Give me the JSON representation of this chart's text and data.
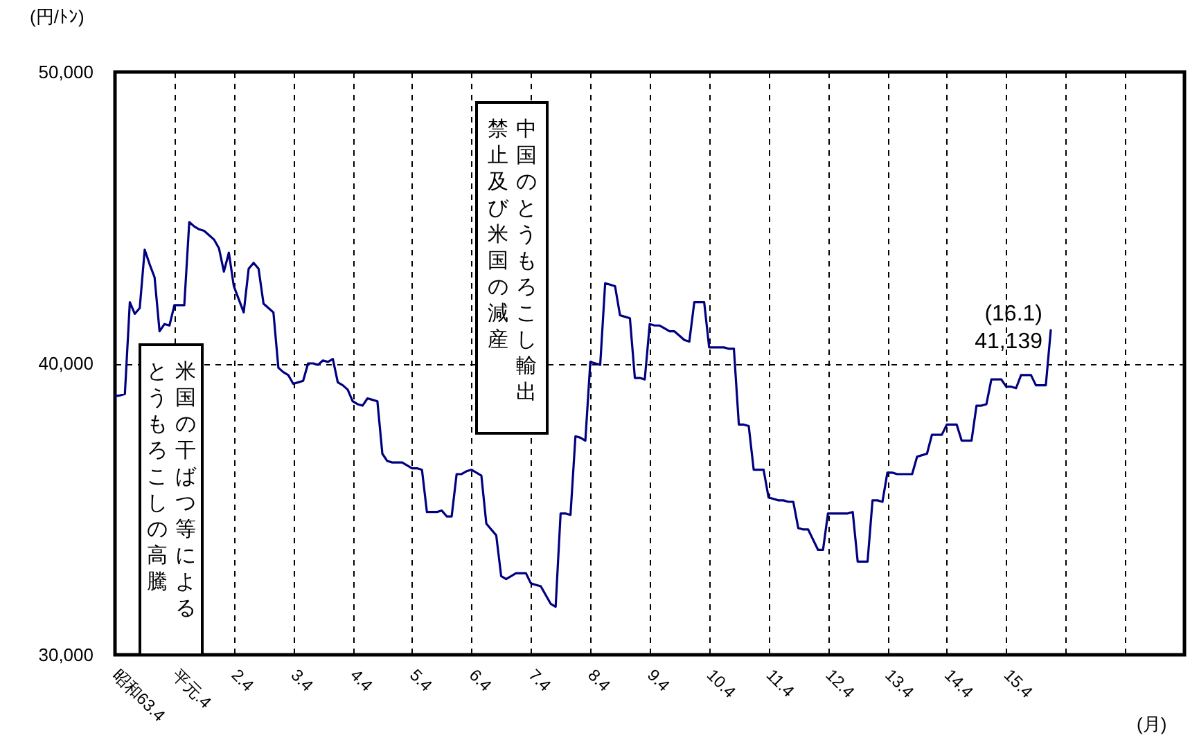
{
  "chart_data": {
    "type": "line",
    "xlabel": "(月)",
    "ylabel": "(円/ﾄﾝ)",
    "categories": [
      "昭和63.4",
      null,
      null,
      null,
      null,
      null,
      null,
      null,
      null,
      null,
      null,
      null,
      "平元.4",
      null,
      null,
      null,
      null,
      null,
      null,
      null,
      null,
      null,
      null,
      null,
      "2.4",
      null,
      null,
      null,
      null,
      null,
      null,
      null,
      null,
      null,
      null,
      null,
      "3.4",
      null,
      null,
      null,
      null,
      null,
      null,
      null,
      null,
      null,
      null,
      null,
      "4.4",
      null,
      null,
      null,
      null,
      null,
      null,
      null,
      null,
      null,
      null,
      null,
      "5.4",
      null,
      null,
      null,
      null,
      null,
      null,
      null,
      null,
      null,
      null,
      null,
      "6.4",
      null,
      null,
      null,
      null,
      null,
      null,
      null,
      null,
      null,
      null,
      null,
      "7.4",
      null,
      null,
      null,
      null,
      null,
      null,
      null,
      null,
      null,
      null,
      null,
      "8.4",
      null,
      null,
      null,
      null,
      null,
      null,
      null,
      null,
      null,
      null,
      null,
      "9.4",
      null,
      null,
      null,
      null,
      null,
      null,
      null,
      null,
      null,
      null,
      null,
      "10.4",
      null,
      null,
      null,
      null,
      null,
      null,
      null,
      null,
      null,
      null,
      null,
      "11.4",
      null,
      null,
      null,
      null,
      null,
      null,
      null,
      null,
      null,
      null,
      null,
      "12.4",
      null,
      null,
      null,
      null,
      null,
      null,
      null,
      null,
      null,
      null,
      null,
      "13.4",
      null,
      null,
      null,
      null,
      null,
      null,
      null,
      null,
      null,
      null,
      null,
      "14.4",
      null,
      null,
      null,
      null,
      null,
      null,
      null,
      null,
      null,
      null,
      null,
      "15.4",
      null,
      null,
      null,
      null,
      null,
      null,
      null,
      null,
      null,
      null,
      null,
      null,
      null,
      null,
      null,
      null,
      null,
      null,
      null,
      null,
      null,
      null,
      null,
      null,
      null,
      null,
      null,
      null,
      null,
      null,
      null,
      null,
      null,
      null,
      null,
      null
    ],
    "ylim": [
      30000,
      50000
    ],
    "yticks": [
      {
        "value": 30000,
        "label": "30,000"
      },
      {
        "value": 40000,
        "label": "40,000"
      },
      {
        "value": 50000,
        "label": "50,000"
      }
    ],
    "grid": true,
    "series": [
      {
        "color": "#000080",
        "values": [
          38880,
          38900,
          38950,
          42100,
          41700,
          41900,
          43900,
          43400,
          42950,
          41100,
          41350,
          41300,
          42000,
          42000,
          42000,
          44850,
          44700,
          44600,
          44550,
          44400,
          44250,
          43950,
          43150,
          43800,
          42650,
          42200,
          41750,
          43250,
          43450,
          43250,
          42050,
          41900,
          41750,
          39850,
          39700,
          39600,
          39300,
          39350,
          39400,
          40000,
          40000,
          39950,
          40100,
          40050,
          40150,
          39350,
          39250,
          39100,
          38700,
          38600,
          38550,
          38800,
          38750,
          38700,
          36900,
          36650,
          36600,
          36600,
          36600,
          36500,
          36400,
          36400,
          36350,
          34900,
          34900,
          34900,
          34950,
          34750,
          34750,
          36200,
          36200,
          36300,
          36350,
          36250,
          36150,
          34500,
          34300,
          34100,
          32700,
          32600,
          32700,
          32800,
          32800,
          32800,
          32450,
          32400,
          32350,
          32050,
          31750,
          31650,
          34850,
          34850,
          34800,
          37500,
          37450,
          37350,
          40050,
          40000,
          39950,
          42750,
          42700,
          42650,
          41650,
          41600,
          41550,
          39500,
          39500,
          39450,
          41350,
          41300,
          41300,
          41200,
          41100,
          41100,
          40950,
          40800,
          40750,
          42100,
          42100,
          42100,
          40550,
          40550,
          40550,
          40550,
          40500,
          40500,
          37900,
          37900,
          37850,
          36350,
          36350,
          36350,
          35400,
          35350,
          35300,
          35300,
          35250,
          35250,
          34350,
          34300,
          34300,
          33950,
          33600,
          33600,
          34850,
          34850,
          34850,
          34850,
          34850,
          34900,
          33200,
          33200,
          33200,
          35300,
          35300,
          35250,
          36250,
          36250,
          36200,
          36200,
          36200,
          36200,
          36800,
          36850,
          36900,
          37550,
          37550,
          37550,
          37900,
          37900,
          37900,
          37350,
          37350,
          37350,
          38550,
          38550,
          38600,
          39450,
          39450,
          39450,
          39200,
          39200,
          39150,
          39600,
          39600,
          39600,
          39250,
          39250,
          39250,
          41139,
          null,
          null,
          null,
          null,
          null,
          null,
          null,
          null,
          null,
          null,
          null,
          null,
          null,
          null,
          null,
          null,
          null,
          null,
          null,
          null,
          null,
          null,
          null,
          null,
          null,
          null,
          null
        ]
      }
    ],
    "annotations": [
      "米国の干ばつ等によるとうもろこしの高騰",
      "中国のとうもろこし輸出禁止及び米国の減産",
      "(16.1)\n41,139"
    ]
  }
}
